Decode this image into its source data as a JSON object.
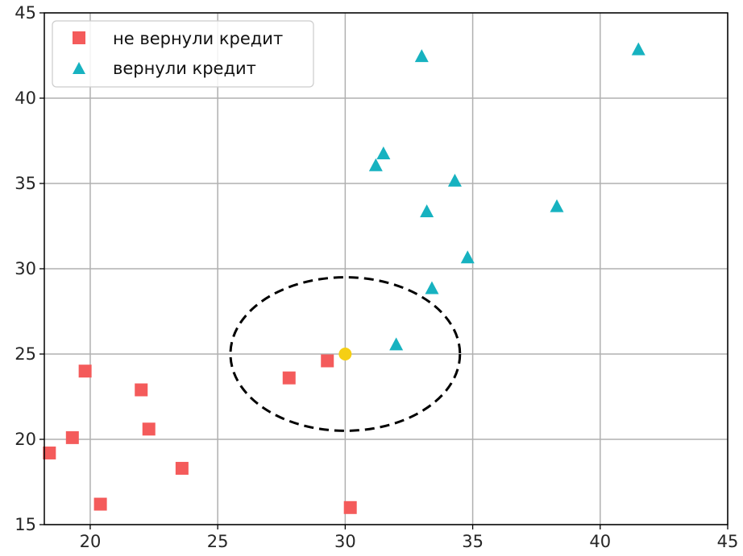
{
  "chart_data": {
    "type": "scatter",
    "xlim": [
      18.2,
      45
    ],
    "ylim": [
      15,
      45
    ],
    "x_ticks": [
      20,
      25,
      30,
      35,
      40,
      45
    ],
    "y_ticks": [
      15,
      20,
      25,
      30,
      35,
      40,
      45
    ],
    "x_tick_labels": [
      "20",
      "25",
      "30",
      "35",
      "40",
      "45"
    ],
    "y_tick_labels": [
      "15",
      "20",
      "25",
      "30",
      "35",
      "40",
      "45"
    ],
    "grid": true,
    "legend_position": "top-left",
    "series": [
      {
        "name": "не вернули кредит",
        "marker": "square",
        "color": "#f45b5b",
        "points": [
          [
            18.4,
            19.2
          ],
          [
            19.3,
            20.1
          ],
          [
            19.8,
            24.0
          ],
          [
            20.4,
            16.2
          ],
          [
            22.0,
            22.9
          ],
          [
            22.3,
            20.6
          ],
          [
            23.6,
            18.3
          ],
          [
            27.8,
            23.6
          ],
          [
            29.3,
            24.6
          ],
          [
            30.2,
            16.0
          ]
        ]
      },
      {
        "name": "вернули кредит",
        "marker": "triangle",
        "color": "#17b2c0",
        "points": [
          [
            33.0,
            42.4
          ],
          [
            41.5,
            42.8
          ],
          [
            31.5,
            36.7
          ],
          [
            31.2,
            36.0
          ],
          [
            34.3,
            35.1
          ],
          [
            33.2,
            33.3
          ],
          [
            38.3,
            33.6
          ],
          [
            34.8,
            30.6
          ],
          [
            33.4,
            28.8
          ],
          [
            32.0,
            25.5
          ]
        ]
      }
    ],
    "query_point": {
      "x": 30,
      "y": 25,
      "color": "#f5cf14"
    },
    "neighborhood_circle": {
      "center": [
        30,
        25
      ],
      "radius": 4.5
    }
  }
}
